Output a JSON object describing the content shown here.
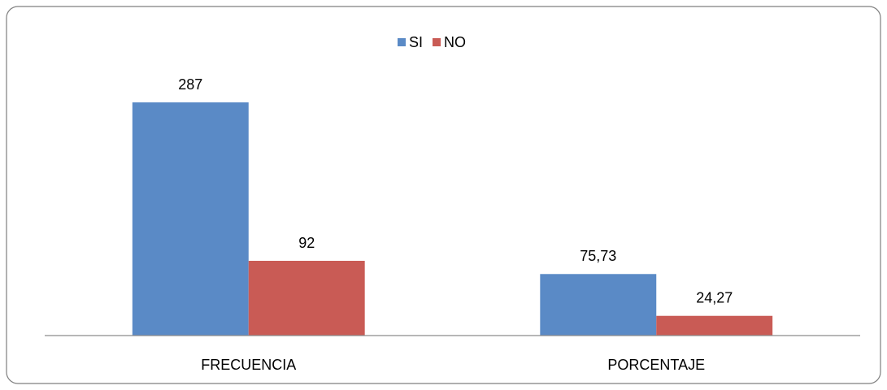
{
  "chart_data": {
    "type": "bar",
    "categories": [
      "FRECUENCIA",
      "PORCENTAJE"
    ],
    "series": [
      {
        "name": "SI",
        "color": "#5a8ac6",
        "values": [
          287,
          75.73
        ],
        "value_labels": [
          "287",
          "75,73"
        ]
      },
      {
        "name": "NO",
        "color": "#c95b55",
        "values": [
          92,
          24.27
        ],
        "value_labels": [
          "92",
          "24,27"
        ]
      }
    ],
    "ylim": [
      0,
      300
    ],
    "legend": "top"
  }
}
